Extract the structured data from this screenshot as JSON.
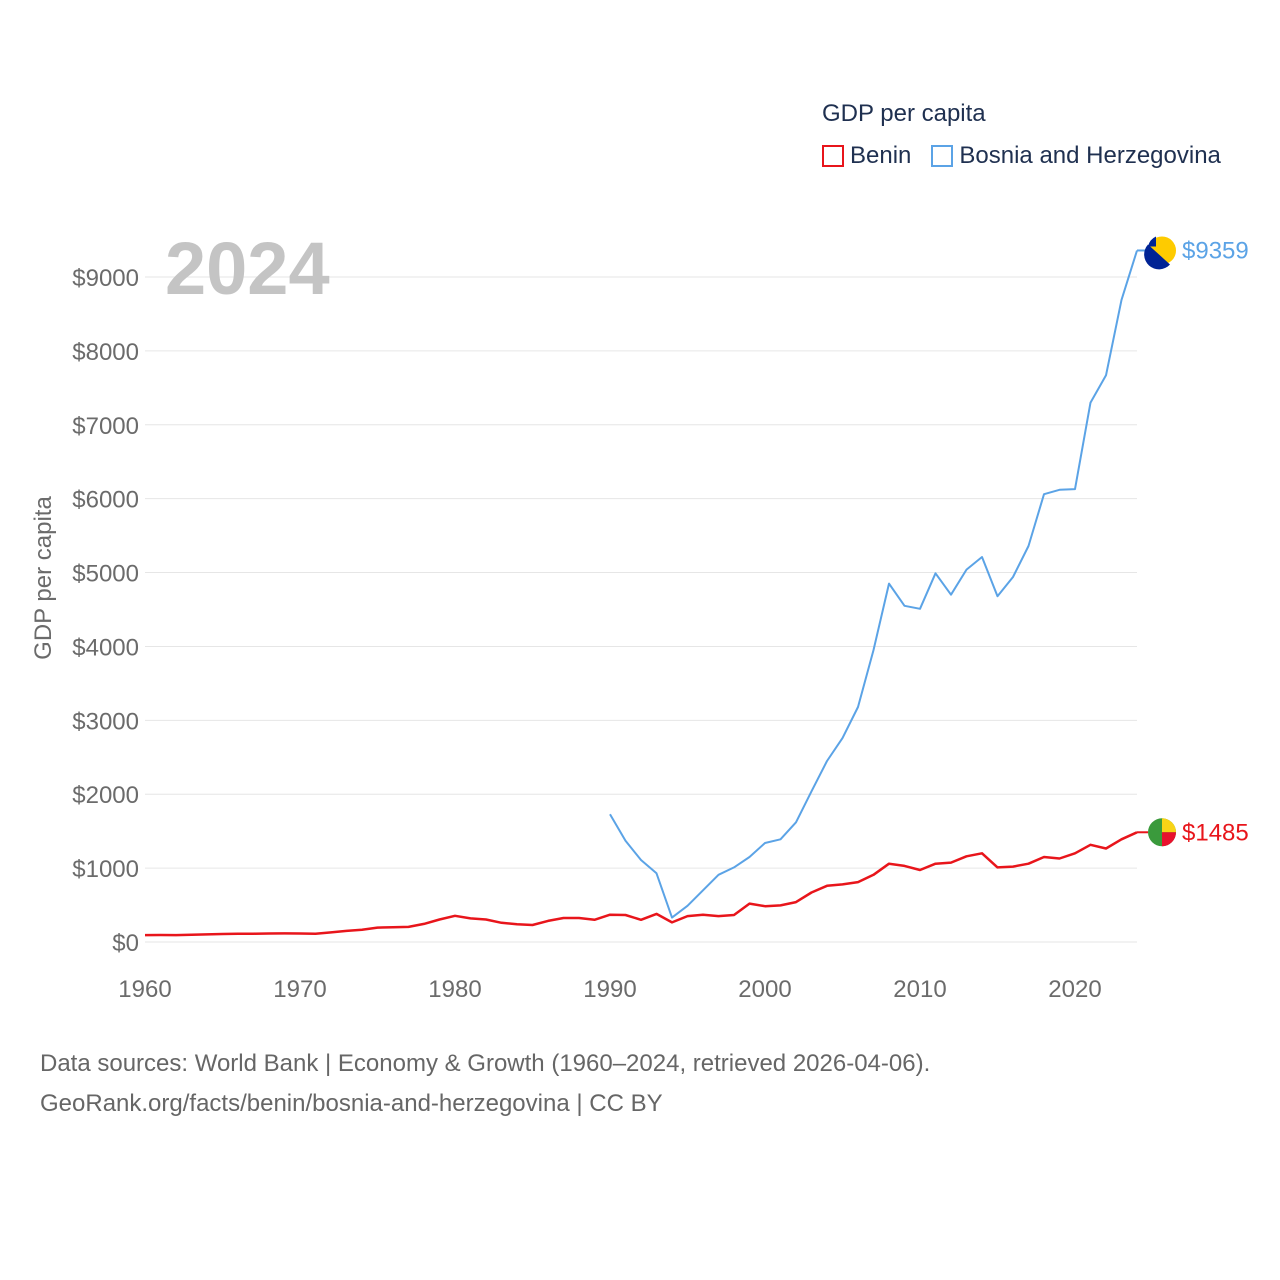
{
  "legend": {
    "title": "GDP per capita",
    "items": [
      {
        "label": "Benin",
        "color": "#e8151b"
      },
      {
        "label": "Bosnia and Herzegovina",
        "color": "#5ba3e6"
      }
    ]
  },
  "year_label": "2024",
  "footer": {
    "line1": "Data sources: World Bank | Economy & Growth (1960–2024, retrieved 2026-04-06).",
    "line2": "GeoRank.org/facts/benin/bosnia-and-herzegovina | CC BY"
  },
  "chart_data": {
    "type": "line",
    "title": "GDP per capita",
    "xlabel": "",
    "ylabel": "GDP per capita",
    "xlim": [
      1960,
      2024
    ],
    "ylim": [
      0,
      9000
    ],
    "xticks": [
      1960,
      1970,
      1980,
      1990,
      2000,
      2010,
      2020
    ],
    "xtick_labels": [
      "1960",
      "1970",
      "1980",
      "1990",
      "2000",
      "2010",
      "2020"
    ],
    "yticks": [
      0,
      1000,
      2000,
      3000,
      4000,
      5000,
      6000,
      7000,
      8000,
      9000
    ],
    "ytick_labels": [
      "$0",
      "$1000",
      "$2000",
      "$3000",
      "$4000",
      "$5000",
      "$6000",
      "$7000",
      "$8000",
      "$9000"
    ],
    "grid": true,
    "series": [
      {
        "name": "Benin",
        "color": "#e8151b",
        "end_label": "$1485",
        "flag_colors": [
          "#3a9a3c",
          "#f8d416",
          "#e8112d"
        ],
        "x": [
          1960,
          1961,
          1962,
          1963,
          1964,
          1965,
          1966,
          1967,
          1968,
          1969,
          1970,
          1971,
          1972,
          1973,
          1974,
          1975,
          1976,
          1977,
          1978,
          1979,
          1980,
          1981,
          1982,
          1983,
          1984,
          1985,
          1986,
          1987,
          1988,
          1989,
          1990,
          1991,
          1992,
          1993,
          1994,
          1995,
          1996,
          1997,
          1998,
          1999,
          2000,
          2001,
          2002,
          2003,
          2004,
          2005,
          2006,
          2007,
          2008,
          2009,
          2010,
          2011,
          2012,
          2013,
          2014,
          2015,
          2016,
          2017,
          2018,
          2019,
          2020,
          2021,
          2022,
          2023,
          2024
        ],
        "y": [
          93,
          95,
          93,
          98,
          103,
          108,
          112,
          112,
          115,
          117,
          115,
          113,
          130,
          150,
          165,
          195,
          200,
          205,
          245,
          305,
          355,
          320,
          305,
          260,
          240,
          230,
          285,
          325,
          325,
          300,
          370,
          365,
          300,
          380,
          265,
          350,
          370,
          350,
          365,
          520,
          485,
          495,
          540,
          670,
          760,
          780,
          810,
          910,
          1060,
          1030,
          975,
          1060,
          1075,
          1160,
          1200,
          1010,
          1020,
          1060,
          1150,
          1130,
          1200,
          1315,
          1265,
          1390,
          1485
        ]
      },
      {
        "name": "Bosnia and Herzegovina",
        "color": "#5ba3e6",
        "end_label": "$9359",
        "flag_colors": [
          "#002395",
          "#fecb00"
        ],
        "x": [
          1990,
          1991,
          1992,
          1993,
          1994,
          1995,
          1996,
          1997,
          1998,
          1999,
          2000,
          2001,
          2002,
          2003,
          2004,
          2005,
          2006,
          2007,
          2008,
          2009,
          2010,
          2011,
          2012,
          2013,
          2014,
          2015,
          2016,
          2017,
          2018,
          2019,
          2020,
          2021,
          2022,
          2023,
          2024
        ],
        "y": [
          1730,
          1370,
          1110,
          930,
          330,
          490,
          700,
          910,
          1010,
          1150,
          1340,
          1390,
          1620,
          2040,
          2450,
          2760,
          3180,
          3950,
          4850,
          4550,
          4510,
          4990,
          4700,
          5040,
          5210,
          4680,
          4940,
          5360,
          6060,
          6120,
          6130,
          7300,
          7670,
          8690,
          9359
        ]
      }
    ]
  }
}
